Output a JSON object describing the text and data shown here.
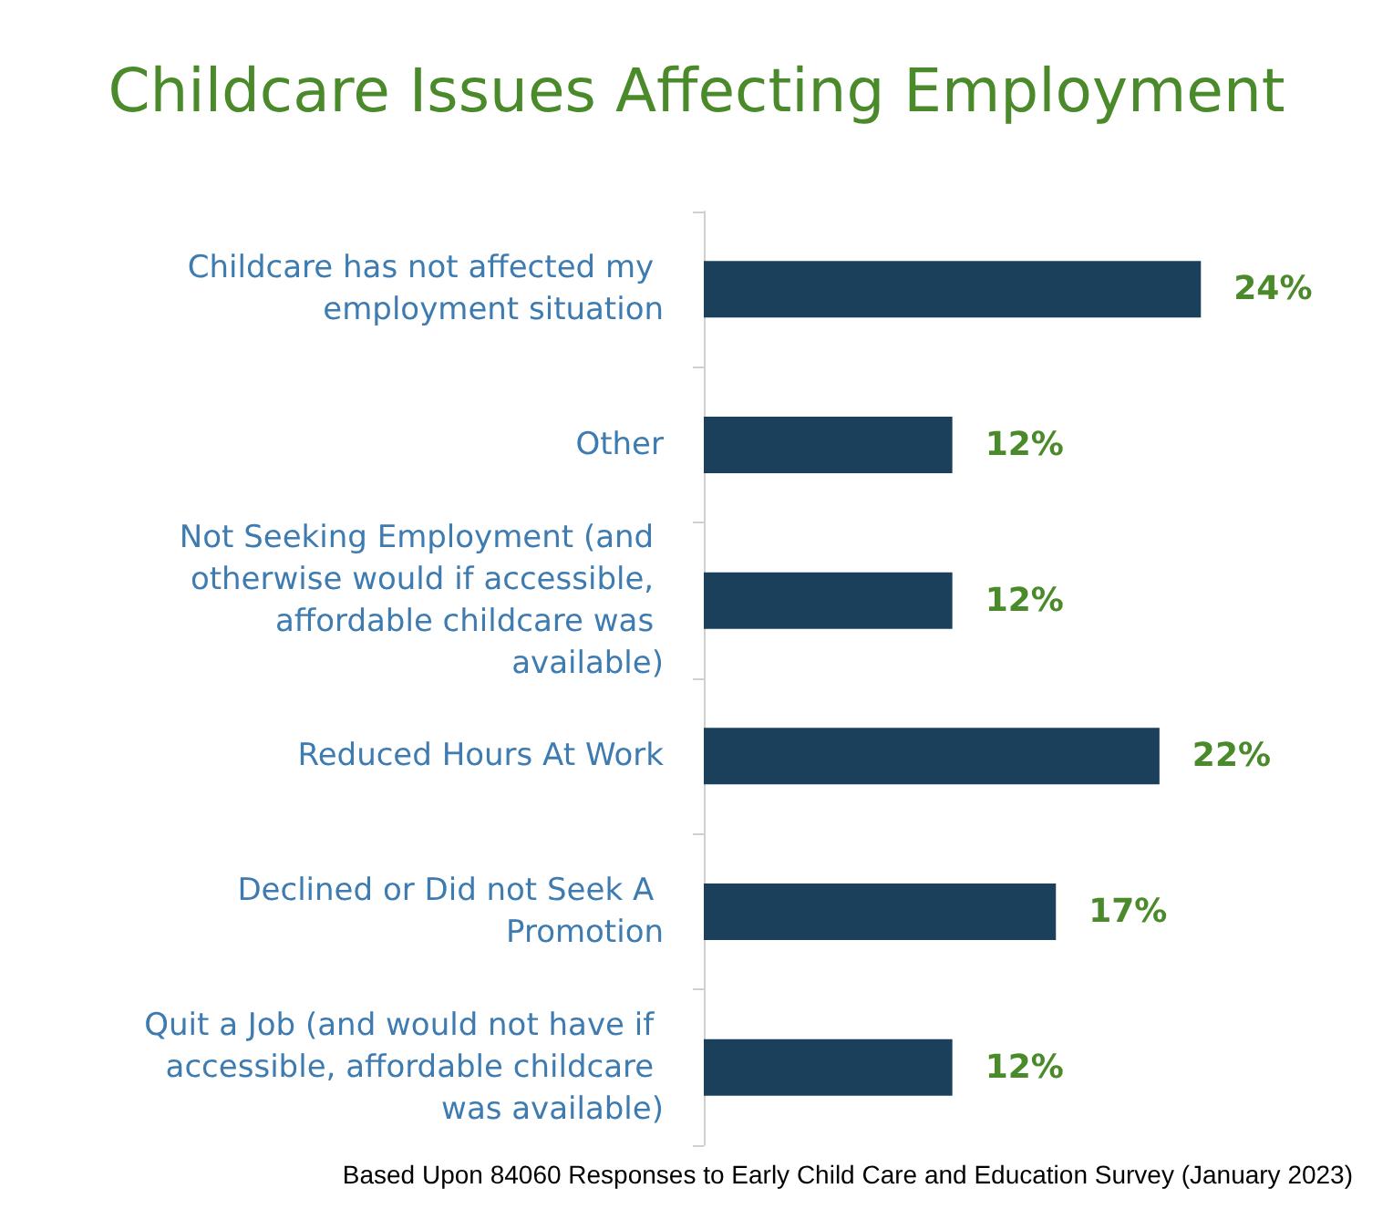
{
  "chart_data": {
    "type": "bar",
    "orientation": "horizontal",
    "title": "Childcare Issues Affecting Employment",
    "categories": [
      "Childcare has not affected my employment situation",
      "Other",
      "Not Seeking Employment (and otherwise would if accessible, affordable childcare was available)",
      "Reduced Hours At Work",
      "Declined or Did not Seek A Promotion",
      "Quit a Job (and would not have if accessible, affordable childcare was available)"
    ],
    "values": [
      24,
      12,
      12,
      22,
      17,
      12
    ],
    "value_labels": [
      "24%",
      "12%",
      "12%",
      "22%",
      "17%",
      "12%"
    ],
    "color": "#1a405c",
    "tick_labels": "y",
    "annotations": [
      "Based Upon 84060 Responses to Early Child Care and Education Survey (January 2023)"
    ]
  }
}
